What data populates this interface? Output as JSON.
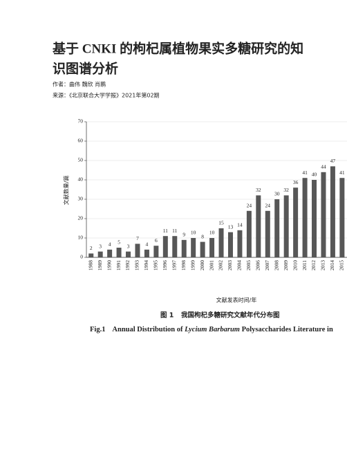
{
  "header": {
    "title_lines": [
      "基于 CNKI 的枸杞属植物果实多糖研究的知",
      "识图谱分析"
    ],
    "authors": "作者：曲伟 魏欣 肖鹏",
    "source": "来源：《北京联合大学学报》2021年第02期"
  },
  "figure": {
    "chart_data": {
      "type": "bar",
      "y_label": "文献数量/篇",
      "x_label": "文献发表时间/年",
      "categories": [
        "1988",
        "1989",
        "1990",
        "1991",
        "1992",
        "1993",
        "1994",
        "1995",
        "1996",
        "1997",
        "1998",
        "1999",
        "2000",
        "2001",
        "2002",
        "2003",
        "2004",
        "2005",
        "2006",
        "2007",
        "2008",
        "2009",
        "2010",
        "2011",
        "2012",
        "2013",
        "2014",
        "2015"
      ],
      "values": [
        2,
        3,
        4,
        5,
        3,
        7,
        4,
        6,
        11,
        11,
        9,
        10,
        8,
        10,
        15,
        13,
        14,
        24,
        32,
        24,
        30,
        32,
        36,
        41,
        40,
        44,
        47,
        41
      ],
      "color": "#575757",
      "ylim": [
        0,
        70
      ],
      "yticks": [
        0,
        10,
        20,
        30,
        40,
        50,
        60,
        70
      ],
      "grid": true
    },
    "caption_cn": {
      "label": "图 1",
      "text": "我国枸杞多糖研究文献年代分布图"
    },
    "caption_en": {
      "label": "Fig.1",
      "parts": [
        "Annual Distribution of",
        "Lycium Barbarum",
        "Polysaccharides Literature in"
      ]
    }
  }
}
